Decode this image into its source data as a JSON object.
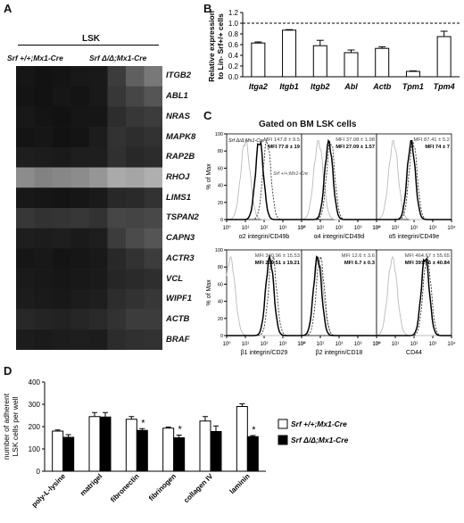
{
  "panel_labels": {
    "a": "A",
    "b": "B",
    "c": "C",
    "d": "D"
  },
  "panelA": {
    "header": "LSK",
    "group1": "Srf +/+;Mx1-Cre",
    "group2": "Srf Δ/Δ;Mx1-Cre",
    "genes": [
      "ITGB2",
      "ABL1",
      "NRAS",
      "MAPK8",
      "RAP2B",
      "RHOJ",
      "LIMS1",
      "TSPAN2",
      "CAPN3",
      "ACTR3",
      "VCL",
      "WIPF1",
      "ACTB",
      "BRAF"
    ],
    "heatmap_gray": [
      [
        22,
        18,
        20,
        24,
        25,
        60,
        95,
        120
      ],
      [
        20,
        18,
        22,
        20,
        25,
        55,
        70,
        85
      ],
      [
        24,
        20,
        18,
        22,
        22,
        45,
        55,
        60
      ],
      [
        20,
        22,
        18,
        20,
        28,
        50,
        45,
        50
      ],
      [
        30,
        28,
        26,
        30,
        30,
        48,
        40,
        44
      ],
      [
        140,
        130,
        135,
        140,
        150,
        170,
        165,
        175
      ],
      [
        24,
        22,
        20,
        22,
        26,
        40,
        42,
        50
      ],
      [
        55,
        50,
        52,
        55,
        50,
        70,
        68,
        72
      ],
      [
        30,
        28,
        30,
        26,
        30,
        60,
        75,
        85
      ],
      [
        22,
        24,
        20,
        22,
        25,
        40,
        50,
        60
      ],
      [
        26,
        24,
        22,
        24,
        26,
        38,
        42,
        46
      ],
      [
        28,
        26,
        24,
        28,
        30,
        45,
        50,
        55
      ],
      [
        40,
        36,
        34,
        38,
        42,
        50,
        60,
        60
      ],
      [
        28,
        26,
        28,
        30,
        28,
        44,
        48,
        50
      ]
    ]
  },
  "chart_data": [
    {
      "type": "bar",
      "panel": "B",
      "categories": [
        "Itga2",
        "Itgb1",
        "Itgb2",
        "Abl",
        "Actb",
        "Tpm1",
        "Tpm4"
      ],
      "values": [
        0.63,
        0.87,
        0.58,
        0.45,
        0.53,
        0.1,
        0.75
      ],
      "errors": [
        0.02,
        0.01,
        0.1,
        0.05,
        0.03,
        0.01,
        0.1
      ],
      "ylabel": "Relative expression to Lin- Srf+/+ cells",
      "ylim": [
        0,
        1.2
      ],
      "yticks": [
        "0.0",
        "0.2",
        "0.4",
        "0.6",
        "0.8",
        "1.0",
        "1.2"
      ],
      "reference_line": 1.0
    },
    {
      "type": "bar",
      "panel": "D",
      "categories": [
        "poly-L-lysine",
        "matrigel",
        "fibronectin",
        "fibrinogen",
        "collagen IV",
        "laminin"
      ],
      "ylabel": "number of adherent LSK cells per well",
      "ylim": [
        0,
        400
      ],
      "yticks": [
        "0",
        "100",
        "200",
        "300",
        "400"
      ],
      "series": [
        {
          "name": "Srf +/+;Mx1-Cre",
          "values": [
            180,
            245,
            233,
            193,
            225,
            290
          ],
          "errors": [
            5,
            18,
            12,
            5,
            20,
            12
          ],
          "color": "#ffffff"
        },
        {
          "name": "Srf Δ/Δ;Mx1-Cre",
          "values": [
            152,
            243,
            183,
            150,
            178,
            155
          ],
          "errors": [
            12,
            20,
            8,
            12,
            25,
            5
          ],
          "color": "#000000"
        }
      ],
      "significance": [
        "",
        "",
        "*",
        "*",
        "",
        "*"
      ]
    }
  ],
  "panelC": {
    "title": "Gated on BM LSK cells",
    "y_axis_label": "% of Max",
    "y_ticks": [
      "0",
      "20",
      "40",
      "60",
      "80",
      "100"
    ],
    "x_ticks": [
      "10⁰",
      "10¹",
      "10²",
      "10³",
      "10⁴"
    ],
    "annot_ko": "Srf Δ/Δ;Mx1-Cre",
    "annot_wt": "Srf +/+;Mx1-Cre",
    "plots": [
      {
        "xlabel": "α2 integrin/CD49b",
        "mfi_wt": "MFI 147.8 ± 9.5",
        "mfi_ko": "MFI 77.8 ± 19",
        "iso": 1.0,
        "wt": 2.15,
        "ko": 1.75
      },
      {
        "xlabel": "α4 integrin/CD49d",
        "mfi_wt": "MFI 37.08 ± 1.98",
        "mfi_ko": "MFI 27.09 ± 1.57",
        "iso": 0.9,
        "wt": 1.55,
        "ko": 1.45
      },
      {
        "xlabel": "α5 integrin/CD49e",
        "mfi_wt": "MFI 87.41 ± 5.2",
        "mfi_ko": "MFI 74 ± 7",
        "iso": 0.9,
        "wt": 1.95,
        "ko": 1.85
      },
      {
        "xlabel": "β1 integrin/CD29",
        "mfi_wt": "MFI 340.96 ± 15.53",
        "mfi_ko": "MFI 239.51 ± 19.21",
        "iso": 0.2,
        "wt": 2.45,
        "ko": 2.3
      },
      {
        "xlabel": "β2 integrin/CD18",
        "mfi_wt": "MFI 12.6 ± 3.6",
        "mfi_ko": "MFI 6.7 ± 0.3",
        "iso": 0.9,
        "wt": 1.0,
        "ko": 0.85
      },
      {
        "xlabel": "CD44",
        "mfi_wt": "MFI 464.67 ± 55.65",
        "mfi_ko": "MFI 397.46 ± 40.84",
        "iso": 0.85,
        "wt": 2.7,
        "ko": 2.6
      }
    ]
  },
  "colors": {
    "ko": "#000000",
    "wt_hist": "#333333",
    "isotype": "#bbbbbb",
    "bar_border": "#000000"
  }
}
